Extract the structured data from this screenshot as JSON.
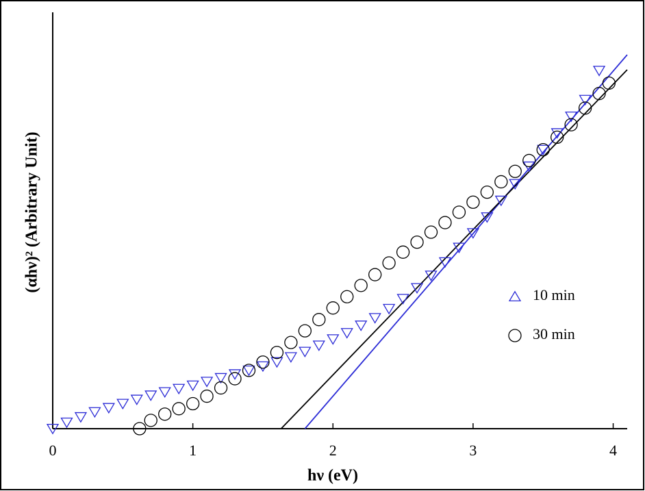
{
  "chart_data": {
    "type": "scatter",
    "xlabel": "hν (eV)",
    "ylabel": "(αhν)² (Arbitrary Unit)",
    "xlim": [
      0,
      4.1
    ],
    "ylim": [
      0,
      100
    ],
    "xticks": [
      0,
      1,
      2,
      3,
      4
    ],
    "series": [
      {
        "name": "10 min",
        "color": "#2b2bd6",
        "marker": "triangle",
        "x": [
          0,
          0.1,
          0.2,
          0.3,
          0.4,
          0.5,
          0.6,
          0.7,
          0.8,
          0.9,
          1.0,
          1.1,
          1.2,
          1.3,
          1.4,
          1.5,
          1.6,
          1.7,
          1.8,
          1.9,
          2.0,
          2.1,
          2.2,
          2.3,
          2.4,
          2.5,
          2.6,
          2.7,
          2.8,
          2.9,
          3.0,
          3.1,
          3.2,
          3.3,
          3.4,
          3.5,
          3.6,
          3.7,
          3.8,
          3.9
        ],
        "values": [
          0,
          1.5,
          2.8,
          4,
          5,
          6,
          7,
          8,
          8.8,
          9.6,
          10.4,
          11.3,
          12.2,
          13.1,
          14,
          15,
          16,
          17.2,
          18.5,
          20,
          21.5,
          23,
          24.8,
          26.6,
          28.8,
          31.2,
          33.8,
          36.8,
          40,
          43.5,
          47,
          50.8,
          54.8,
          58.8,
          63,
          67,
          71,
          75,
          79,
          86
        ]
      },
      {
        "name": "30 min",
        "color": "#000000",
        "marker": "circle",
        "x": [
          0.62,
          0.7,
          0.8,
          0.9,
          1.0,
          1.1,
          1.2,
          1.3,
          1.4,
          1.5,
          1.6,
          1.7,
          1.8,
          1.9,
          2.0,
          2.1,
          2.2,
          2.3,
          2.4,
          2.5,
          2.6,
          2.7,
          2.8,
          2.9,
          3.0,
          3.1,
          3.2,
          3.3,
          3.4,
          3.5,
          3.6,
          3.7,
          3.8,
          3.9,
          3.97
        ],
        "values": [
          0,
          2,
          3.5,
          4.8,
          6,
          7.8,
          9.8,
          12,
          14,
          16,
          18.3,
          20.7,
          23.5,
          26.2,
          29,
          31.7,
          34.4,
          37,
          39.8,
          42.4,
          44.8,
          47.2,
          49.5,
          52,
          54.4,
          56.8,
          59.3,
          61.8,
          64.4,
          67,
          70,
          73,
          77,
          80.5,
          83
        ]
      }
    ],
    "fit_lines": [
      {
        "color": "#2b2bd6",
        "x": [
          1.8,
          4.1
        ],
        "values": [
          0,
          89.8
        ]
      },
      {
        "color": "#000000",
        "x": [
          1.63,
          4.1
        ],
        "values": [
          0,
          86.2
        ]
      }
    ]
  }
}
